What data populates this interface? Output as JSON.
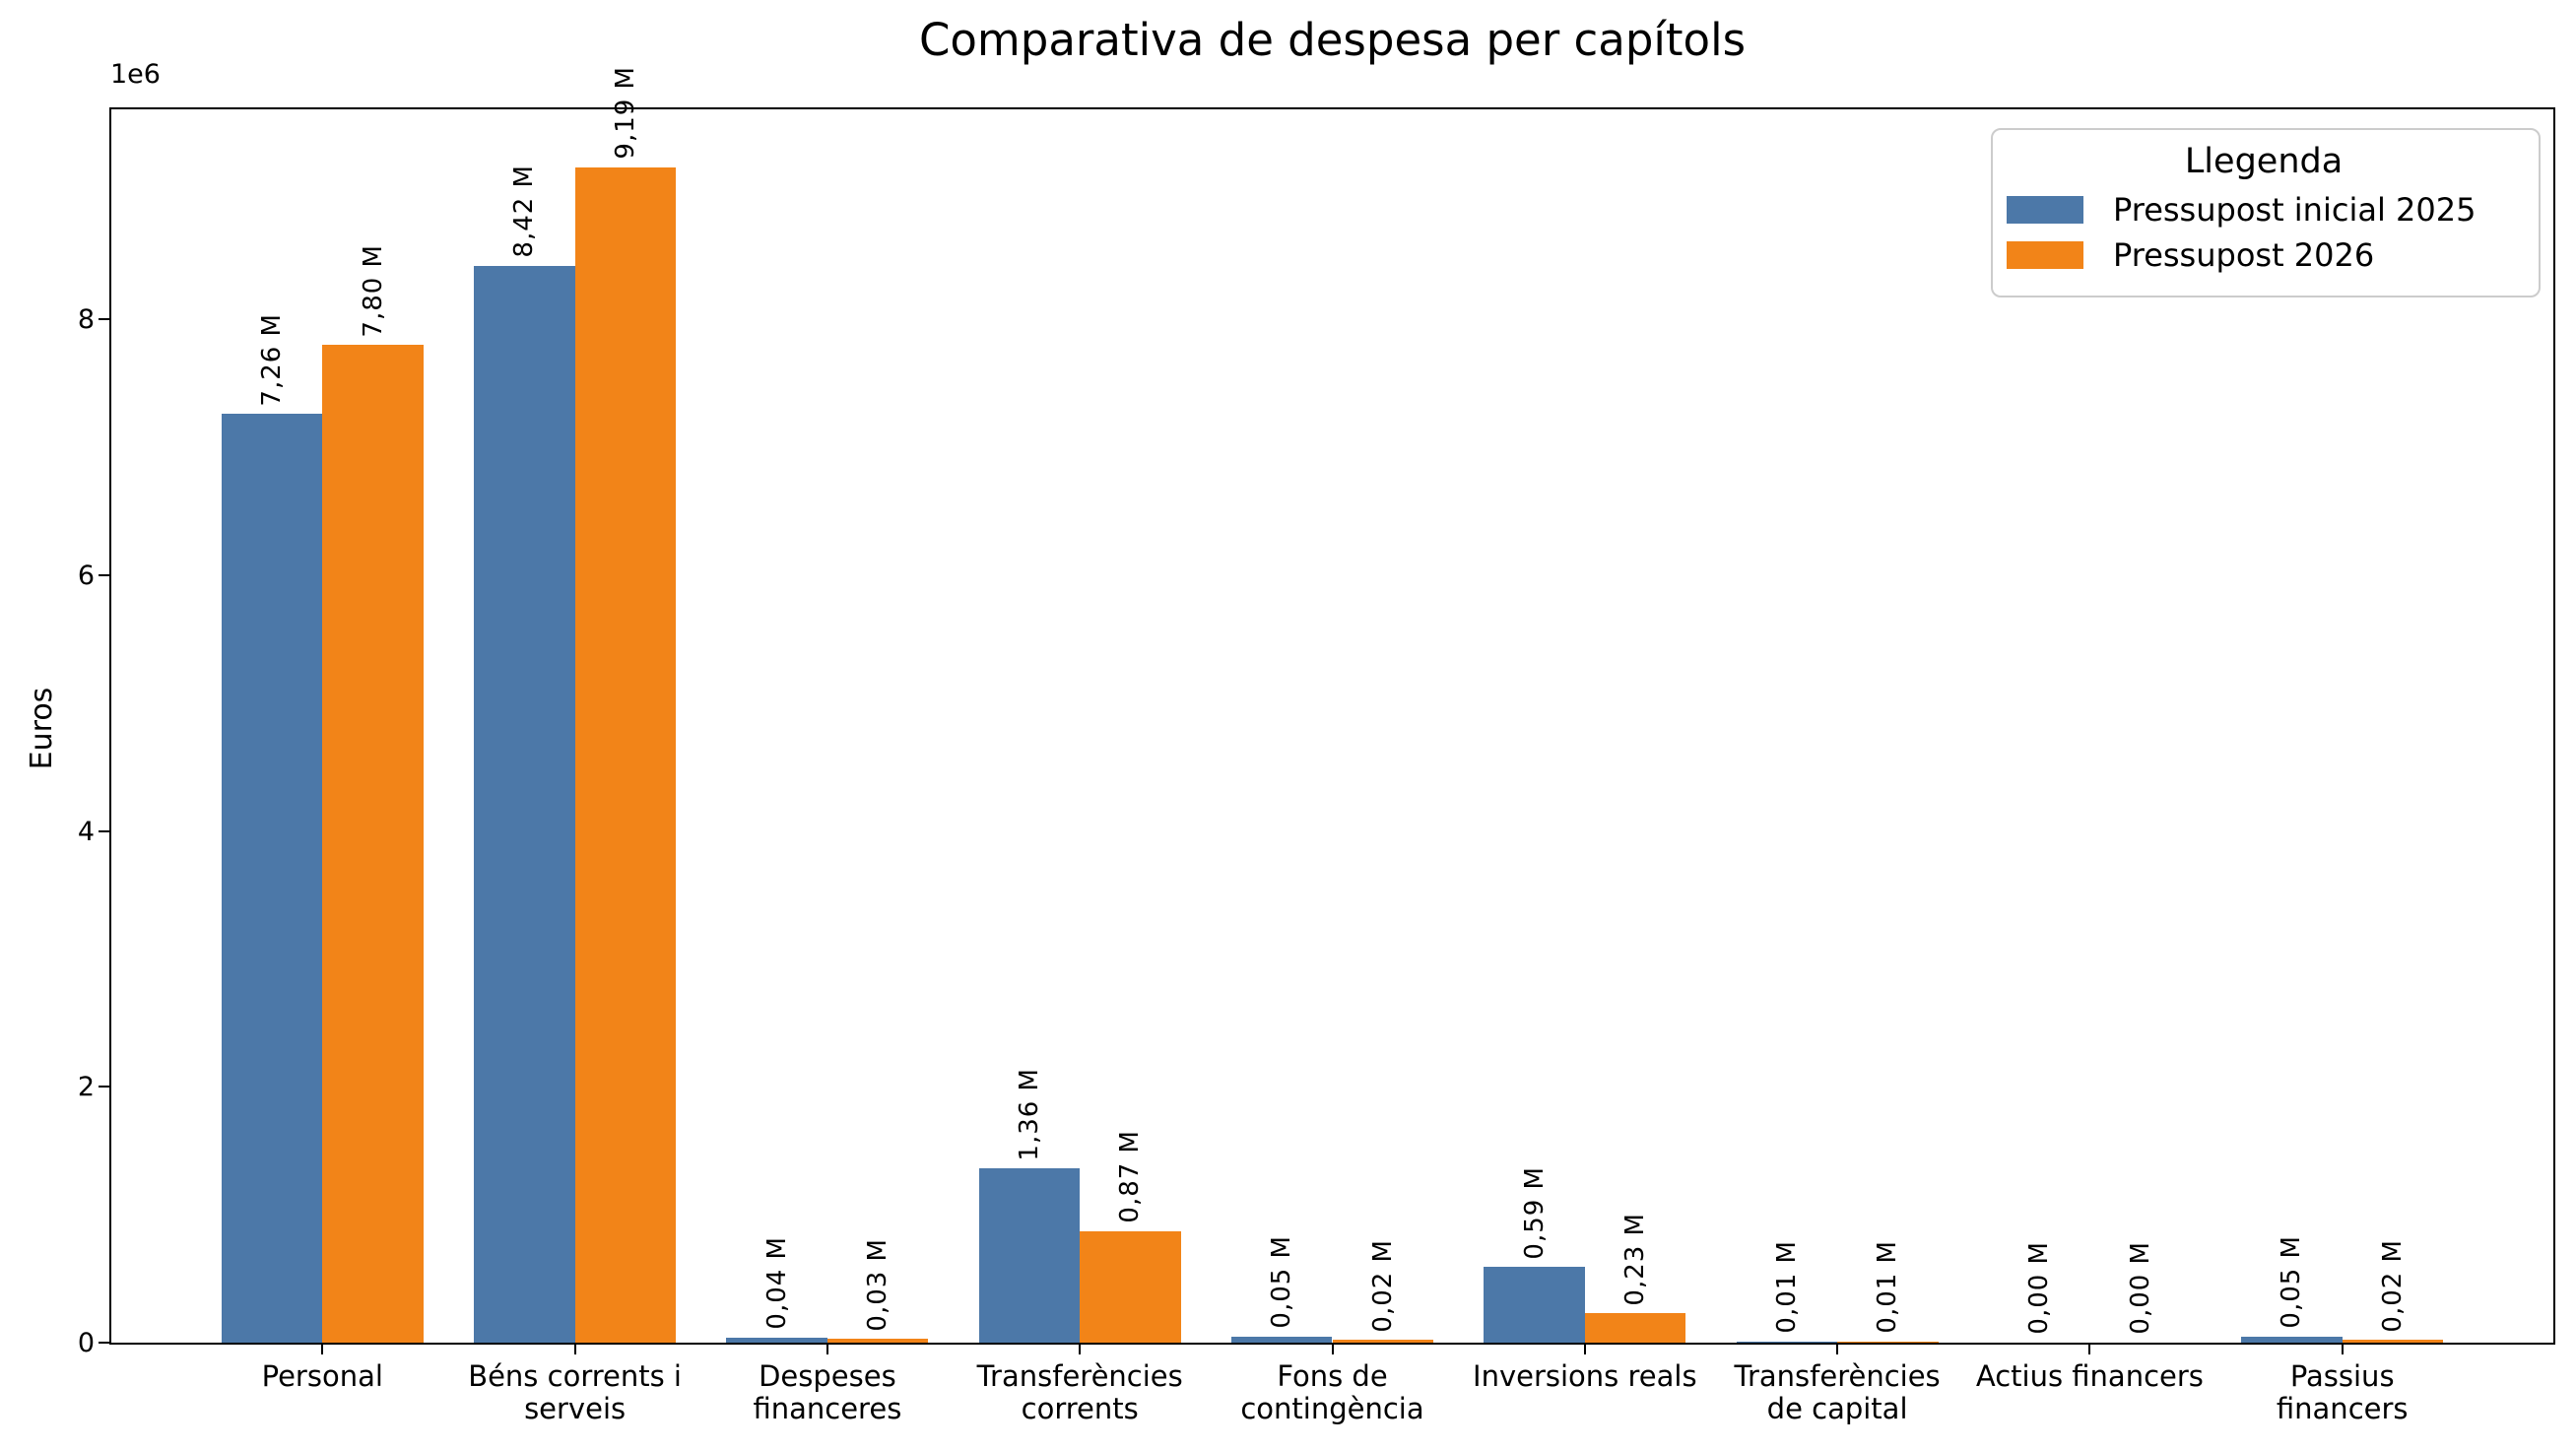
{
  "figure": {
    "title": "Comparativa de despesa per capítols"
  },
  "chart_data": {
    "type": "bar",
    "title": "Comparativa de despesa per capítols",
    "xlabel": "",
    "ylabel": "Euros",
    "y_offset_label": "1e6",
    "grid": false,
    "categories": [
      "Personal",
      "Béns corrents i\nserveis",
      "Despeses\nfinanceres",
      "Transferències\ncorrents",
      "Fons de\ncontingència",
      "Inversions reals",
      "Transferències\nde capital",
      "Actius financers",
      "Passius\nfinancers"
    ],
    "series": [
      {
        "name": "Pressupost inicial 2025",
        "color": "#4C78A8",
        "values": [
          7260000,
          8420000,
          40000,
          1360000,
          50000,
          590000,
          10000,
          0,
          50000
        ],
        "value_labels": [
          "7,26 M",
          "8,42 M",
          "0,04 M",
          "1,36 M",
          "0,05 M",
          "0,59 M",
          "0,01 M",
          "0,00 M",
          "0,05 M"
        ]
      },
      {
        "name": "Pressupost 2026",
        "color": "#F28418",
        "values": [
          7800000,
          9190000,
          30000,
          870000,
          20000,
          230000,
          10000,
          0,
          20000
        ],
        "value_labels": [
          "7,80 M",
          "9,19 M",
          "0,03 M",
          "0,87 M",
          "0,02 M",
          "0,23 M",
          "0,01 M",
          "0,00 M",
          "0,02 M"
        ]
      }
    ],
    "yticks": [
      0,
      2000000,
      4000000,
      6000000,
      8000000
    ],
    "ytick_labels": [
      "0",
      "2",
      "4",
      "6",
      "8"
    ],
    "ylim": [
      0,
      9650000
    ],
    "legend": {
      "title": "Llegenda",
      "position": "upper right"
    }
  }
}
